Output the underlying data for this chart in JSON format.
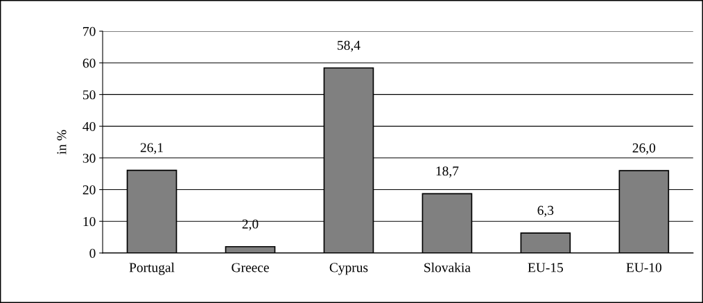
{
  "chart_data": {
    "type": "bar",
    "ylabel": "in %",
    "categories": [
      "Portugal",
      "Greece",
      "Cyprus",
      "Slovakia",
      "EU-15",
      "EU-10"
    ],
    "values": [
      26.1,
      2.0,
      58.4,
      18.7,
      6.3,
      26.0
    ],
    "value_labels": [
      "26,1",
      "2,0",
      "58,4",
      "18,7",
      "6,3",
      "26,0"
    ],
    "color": "#808080",
    "ylim": [
      0,
      70
    ],
    "yticks": [
      0,
      10,
      20,
      30,
      40,
      50,
      60,
      70
    ],
    "grid": "y",
    "legend": false
  }
}
